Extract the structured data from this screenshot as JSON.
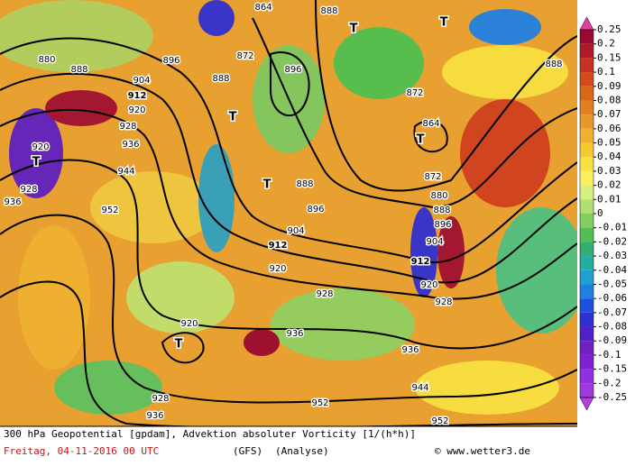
{
  "map": {
    "contour_labels": [
      {
        "text": "864",
        "bold": false
      },
      {
        "text": "872",
        "bold": false
      },
      {
        "text": "880",
        "bold": false
      },
      {
        "text": "888",
        "bold": false
      },
      {
        "text": "896",
        "bold": false
      },
      {
        "text": "904",
        "bold": false
      },
      {
        "text": "912",
        "bold": true
      },
      {
        "text": "920",
        "bold": false
      },
      {
        "text": "928",
        "bold": false
      },
      {
        "text": "936",
        "bold": false
      },
      {
        "text": "944",
        "bold": false
      },
      {
        "text": "952",
        "bold": false
      },
      {
        "text": "920",
        "bold": false
      },
      {
        "text": "928",
        "bold": false
      },
      {
        "text": "936",
        "bold": false
      },
      {
        "text": "896",
        "bold": false
      },
      {
        "text": "888",
        "bold": false
      },
      {
        "text": "888",
        "bold": false
      },
      {
        "text": "896",
        "bold": false
      },
      {
        "text": "904",
        "bold": false
      },
      {
        "text": "912",
        "bold": true
      },
      {
        "text": "920",
        "bold": false
      },
      {
        "text": "928",
        "bold": false
      },
      {
        "text": "936",
        "bold": false
      },
      {
        "text": "920",
        "bold": false
      },
      {
        "text": "928",
        "bold": false
      },
      {
        "text": "936",
        "bold": false
      },
      {
        "text": "952",
        "bold": false
      },
      {
        "text": "952",
        "bold": false
      },
      {
        "text": "944",
        "bold": false
      },
      {
        "text": "936",
        "bold": false
      },
      {
        "text": "928",
        "bold": false
      },
      {
        "text": "920",
        "bold": false
      },
      {
        "text": "912",
        "bold": true
      },
      {
        "text": "904",
        "bold": false
      },
      {
        "text": "896",
        "bold": false
      },
      {
        "text": "888",
        "bold": false
      },
      {
        "text": "880",
        "bold": false
      },
      {
        "text": "872",
        "bold": false
      },
      {
        "text": "864",
        "bold": false
      },
      {
        "text": "872",
        "bold": false
      },
      {
        "text": "888",
        "bold": false
      },
      {
        "text": "888",
        "bold": false
      }
    ],
    "lows": [
      "T",
      "T",
      "T",
      "T",
      "T",
      "T",
      "T"
    ]
  },
  "colorbar": {
    "levels": [
      0.25,
      0.2,
      0.15,
      0.1,
      0.09,
      0.08,
      0.07,
      0.06,
      0.05,
      0.04,
      0.03,
      0.02,
      0.01,
      0,
      -0.01,
      -0.02,
      -0.03,
      -0.04,
      -0.05,
      -0.06,
      -0.07,
      -0.08,
      -0.09,
      -0.1,
      -0.15,
      -0.2,
      -0.25
    ],
    "colors": [
      "#e040a0",
      "#9a0a2e",
      "#b01a28",
      "#c83020",
      "#d44a18",
      "#d86818",
      "#e08020",
      "#e89828",
      "#f0b030",
      "#f8c830",
      "#f8e040",
      "#f8f060",
      "#d8f080",
      "#b0e070",
      "#80d060",
      "#50c050",
      "#30b070",
      "#20b0a0",
      "#20a0d0",
      "#2080e0",
      "#2050e0",
      "#3030d0",
      "#5020c8",
      "#7020c0",
      "#8020d0",
      "#9030e0",
      "#a038e0",
      "#b040e0"
    ]
  },
  "footer": {
    "description": "300 hPa Geopotential [gpdam], Advektion absoluter Vorticity [1/(h*h)]",
    "date": "Freitag, 04-11-2016  00 UTC",
    "model": "(GFS)",
    "run": "(Analyse)",
    "source": "© www.wetter3.de"
  }
}
